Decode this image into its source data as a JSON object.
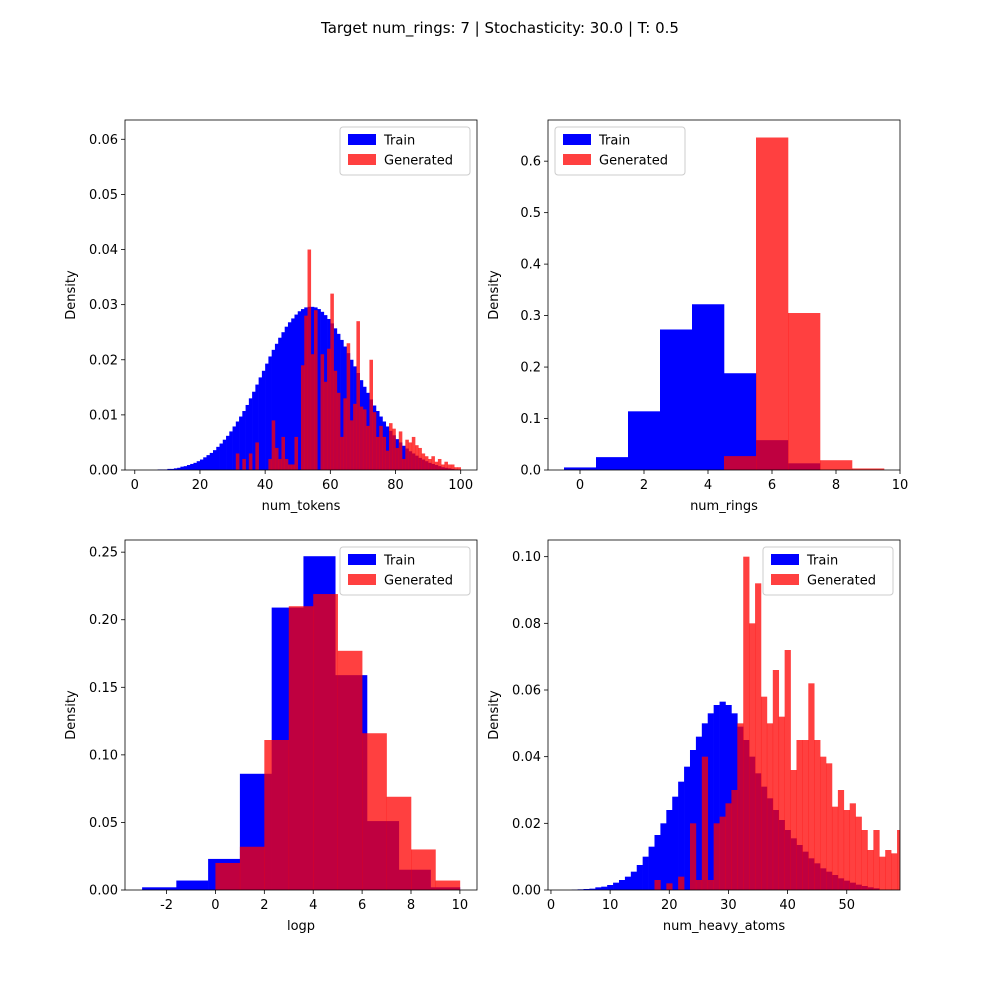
{
  "figure": {
    "suptitle": "Target num_rings: 7 | Stochasticity: 30.0 | T: 0.5"
  },
  "colors": {
    "train": "#0000ff",
    "generated": "#ff0000",
    "generated_alpha": 0.75
  },
  "chart_data": [
    {
      "type": "bar",
      "histogram": true,
      "xlabel": "num_tokens",
      "ylabel": "Density",
      "legend_position": "top-right",
      "xlim": [
        -3,
        105
      ],
      "ylim": [
        0,
        0.0635
      ],
      "xticks": [
        0,
        20,
        40,
        60,
        80,
        100
      ],
      "yticks": [
        0.0,
        0.01,
        0.02,
        0.03,
        0.04,
        0.05,
        0.06
      ],
      "ytick_labels": [
        "0.00",
        "0.01",
        "0.02",
        "0.03",
        "0.04",
        "0.05",
        "0.06"
      ],
      "series": [
        {
          "name": "Train",
          "bin_start": 7,
          "bin_width": 1,
          "values": [
            0.0001,
            0.0001,
            0.0001,
            0.0002,
            0.0002,
            0.0003,
            0.0004,
            0.0006,
            0.0007,
            0.0009,
            0.0011,
            0.0013,
            0.0016,
            0.0019,
            0.0023,
            0.0027,
            0.0031,
            0.0036,
            0.0042,
            0.0048,
            0.0055,
            0.0062,
            0.007,
            0.0079,
            0.0088,
            0.0097,
            0.0107,
            0.0118,
            0.013,
            0.0142,
            0.0155,
            0.0168,
            0.018,
            0.0193,
            0.0206,
            0.0218,
            0.0229,
            0.024,
            0.025,
            0.026,
            0.0268,
            0.0275,
            0.0282,
            0.0288,
            0.0292,
            0.0295,
            0.0296,
            0.0296,
            0.0295,
            0.0292,
            0.0287,
            0.0281,
            0.0274,
            0.0266,
            0.0257,
            0.0247,
            0.0236,
            0.0224,
            0.0212,
            0.02,
            0.0188,
            0.0176,
            0.0163,
            0.0151,
            0.014,
            0.0128,
            0.0117,
            0.0107,
            0.0097,
            0.0088,
            0.0079,
            0.0071,
            0.0063,
            0.0056,
            0.005,
            0.0044,
            0.0039,
            0.0034,
            0.003,
            0.0026,
            0.0022,
            0.0019,
            0.0016,
            0.0013,
            0.0011,
            0.0009,
            0.0007,
            0.0005,
            0.0004,
            0.0003,
            0.0002,
            0.0001
          ]
        },
        {
          "name": "Generated",
          "bin_start": 31,
          "bin_width": 1,
          "values": [
            0.003,
            0,
            0.002,
            0,
            0.003,
            0,
            0.005,
            0,
            0,
            0,
            0.002,
            0.009,
            0.004,
            0.002,
            0.006,
            0.002,
            0.001,
            0.001,
            0.006,
            0,
            0.019,
            0.028,
            0.04,
            0.021,
            0.029,
            0,
            0.021,
            0.016,
            0.022,
            0.032,
            0.018,
            0.014,
            0.006,
            0.013,
            0.023,
            0.009,
            0.012,
            0.027,
            0.0115,
            0.011,
            0.008,
            0.02,
            0.0105,
            0.006,
            0.008,
            0.006,
            0.0035,
            0.0085,
            0.0075,
            0.004,
            0.007,
            0.002,
            0.0055,
            0.005,
            0.006,
            0.0045,
            0.004,
            0.003,
            0.0025,
            0.002,
            0.0025,
            0.0015,
            0.002,
            0.001,
            0.0015,
            0.001,
            0.001,
            0.0005,
            0.0005
          ]
        }
      ]
    },
    {
      "type": "bar",
      "histogram": true,
      "xlabel": "num_rings",
      "ylabel": "Density",
      "legend_position": "top-left",
      "xlim": [
        -1,
        10
      ],
      "ylim": [
        0,
        0.68
      ],
      "xticks": [
        0,
        2,
        4,
        6,
        8,
        10
      ],
      "yticks": [
        0.0,
        0.1,
        0.2,
        0.3,
        0.4,
        0.5,
        0.6
      ],
      "ytick_labels": [
        "0.0",
        "0.1",
        "0.2",
        "0.3",
        "0.4",
        "0.5",
        "0.6"
      ],
      "series": [
        {
          "name": "Train",
          "bins": [
            {
              "x0": -0.5,
              "x1": 0.5,
              "value": 0.005
            },
            {
              "x0": 0.5,
              "x1": 1.5,
              "value": 0.025
            },
            {
              "x0": 1.5,
              "x1": 2.5,
              "value": 0.114
            },
            {
              "x0": 2.5,
              "x1": 3.5,
              "value": 0.273
            },
            {
              "x0": 3.5,
              "x1": 4.5,
              "value": 0.322
            },
            {
              "x0": 4.5,
              "x1": 5.5,
              "value": 0.188
            },
            {
              "x0": 5.5,
              "x1": 6.5,
              "value": 0.058
            },
            {
              "x0": 6.5,
              "x1": 7.5,
              "value": 0.013
            }
          ]
        },
        {
          "name": "Generated",
          "bins": [
            {
              "x0": 4.5,
              "x1": 5.5,
              "value": 0.027
            },
            {
              "x0": 5.5,
              "x1": 6.5,
              "value": 0.646
            },
            {
              "x0": 6.5,
              "x1": 7.5,
              "value": 0.305
            },
            {
              "x0": 7.5,
              "x1": 8.5,
              "value": 0.019
            },
            {
              "x0": 8.5,
              "x1": 9.5,
              "value": 0.003
            }
          ]
        }
      ]
    },
    {
      "type": "bar",
      "histogram": true,
      "xlabel": "logp",
      "ylabel": "Density",
      "legend_position": "top-right",
      "xlim": [
        -3.7,
        10.7
      ],
      "ylim": [
        0,
        0.259
      ],
      "xticks": [
        -2,
        0,
        2,
        4,
        6,
        8,
        10
      ],
      "yticks": [
        0.0,
        0.05,
        0.1,
        0.15,
        0.2,
        0.25
      ],
      "ytick_labels": [
        "0.00",
        "0.05",
        "0.10",
        "0.15",
        "0.20",
        "0.25"
      ],
      "series": [
        {
          "name": "Train",
          "bins": [
            {
              "x0": -3.0,
              "x1": -1.6,
              "value": 0.002
            },
            {
              "x0": -1.6,
              "x1": -0.3,
              "value": 0.007
            },
            {
              "x0": -0.3,
              "x1": 1.0,
              "value": 0.023
            },
            {
              "x0": 1.0,
              "x1": 2.3,
              "value": 0.086
            },
            {
              "x0": 2.3,
              "x1": 3.6,
              "value": 0.209
            },
            {
              "x0": 3.6,
              "x1": 4.9,
              "value": 0.247
            },
            {
              "x0": 4.9,
              "x1": 6.2,
              "value": 0.159
            },
            {
              "x0": 6.2,
              "x1": 7.5,
              "value": 0.051
            },
            {
              "x0": 7.5,
              "x1": 8.8,
              "value": 0.015
            },
            {
              "x0": 8.8,
              "x1": 10.0,
              "value": 0.002
            }
          ]
        },
        {
          "name": "Generated",
          "bins": [
            {
              "x0": 0.0,
              "x1": 1.0,
              "value": 0.02
            },
            {
              "x0": 1.0,
              "x1": 2.0,
              "value": 0.032
            },
            {
              "x0": 2.0,
              "x1": 3.0,
              "value": 0.111
            },
            {
              "x0": 3.0,
              "x1": 4.0,
              "value": 0.21
            },
            {
              "x0": 4.0,
              "x1": 5.0,
              "value": 0.219
            },
            {
              "x0": 5.0,
              "x1": 6.0,
              "value": 0.177
            },
            {
              "x0": 6.0,
              "x1": 7.0,
              "value": 0.116
            },
            {
              "x0": 7.0,
              "x1": 8.0,
              "value": 0.069
            },
            {
              "x0": 8.0,
              "x1": 9.0,
              "value": 0.03
            },
            {
              "x0": 9.0,
              "x1": 10.0,
              "value": 0.007
            }
          ]
        }
      ]
    },
    {
      "type": "bar",
      "histogram": true,
      "xlabel": "num_heavy_atoms",
      "ylabel": "Density",
      "legend_position": "top-right",
      "xlim": [
        -0.5,
        59
      ],
      "ylim": [
        0,
        0.105
      ],
      "xticks": [
        0,
        10,
        20,
        30,
        40,
        50
      ],
      "yticks": [
        0.0,
        0.02,
        0.04,
        0.06,
        0.08,
        0.1
      ],
      "ytick_labels": [
        "0.00",
        "0.02",
        "0.04",
        "0.06",
        "0.08",
        "0.10"
      ],
      "series": [
        {
          "name": "Train",
          "bin_start": 3.5,
          "bin_width": 1,
          "values": [
            0.0001,
            0.0002,
            0.0003,
            0.0004,
            0.0008,
            0.001,
            0.0015,
            0.0022,
            0.003,
            0.004,
            0.0055,
            0.0075,
            0.01,
            0.013,
            0.0165,
            0.02,
            0.024,
            0.028,
            0.0325,
            0.037,
            0.042,
            0.046,
            0.05,
            0.053,
            0.0555,
            0.0565,
            0.0555,
            0.053,
            0.049,
            0.045,
            0.04,
            0.035,
            0.031,
            0.0275,
            0.024,
            0.021,
            0.018,
            0.0155,
            0.0135,
            0.0115,
            0.0095,
            0.008,
            0.0065,
            0.0055,
            0.0045,
            0.0035,
            0.0028,
            0.0022,
            0.0016,
            0.0012,
            0.0008,
            0.0005
          ]
        },
        {
          "name": "Generated",
          "bin_start": 17.5,
          "bin_width": 1,
          "values": [
            0.003,
            0,
            0.002,
            0,
            0.004,
            0,
            0.02,
            0.003,
            0.04,
            0.003,
            0.02,
            0.022,
            0.026,
            0.03,
            0.05,
            0.1,
            0.08,
            0.092,
            0.058,
            0.05,
            0.066,
            0.052,
            0.072,
            0.036,
            0.045,
            0.045,
            0.062,
            0.045,
            0.04,
            0.038,
            0.025,
            0.03,
            0.024,
            0.026,
            0.022,
            0.018,
            0.012,
            0.018,
            0.01,
            0.012,
            0.011,
            0.018,
            0.007,
            0.012,
            0.008,
            0.007,
            0.006,
            0.005,
            0.004,
            0.002
          ]
        }
      ]
    }
  ]
}
